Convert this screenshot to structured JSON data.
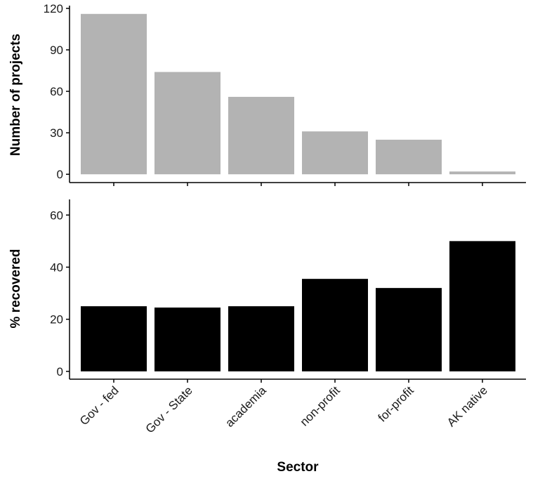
{
  "chart_data": [
    {
      "type": "bar",
      "title": "",
      "xlabel": "",
      "ylabel": "Number of projects",
      "categories": [
        "Gov - fed",
        "Gov - State",
        "academia",
        "non-profit",
        "for-profit",
        "AK native"
      ],
      "values": [
        116,
        74,
        56,
        31,
        25,
        2
      ],
      "ylim": [
        -6,
        122
      ],
      "yticks": [
        0,
        30,
        60,
        90,
        120
      ],
      "bar_color": "#b3b3b3",
      "show_x_tick_labels": false,
      "grid": false
    },
    {
      "type": "bar",
      "title": "",
      "xlabel": "Sector",
      "ylabel": "% recovered",
      "categories": [
        "Gov - fed",
        "Gov - State",
        "academia",
        "non-profit",
        "for-profit",
        "AK native"
      ],
      "values": [
        25,
        24.5,
        25,
        35.5,
        32,
        50
      ],
      "ylim": [
        -3,
        66
      ],
      "yticks": [
        0,
        20,
        40,
        60
      ],
      "bar_color": "#000000",
      "show_x_tick_labels": true,
      "grid": false
    }
  ]
}
